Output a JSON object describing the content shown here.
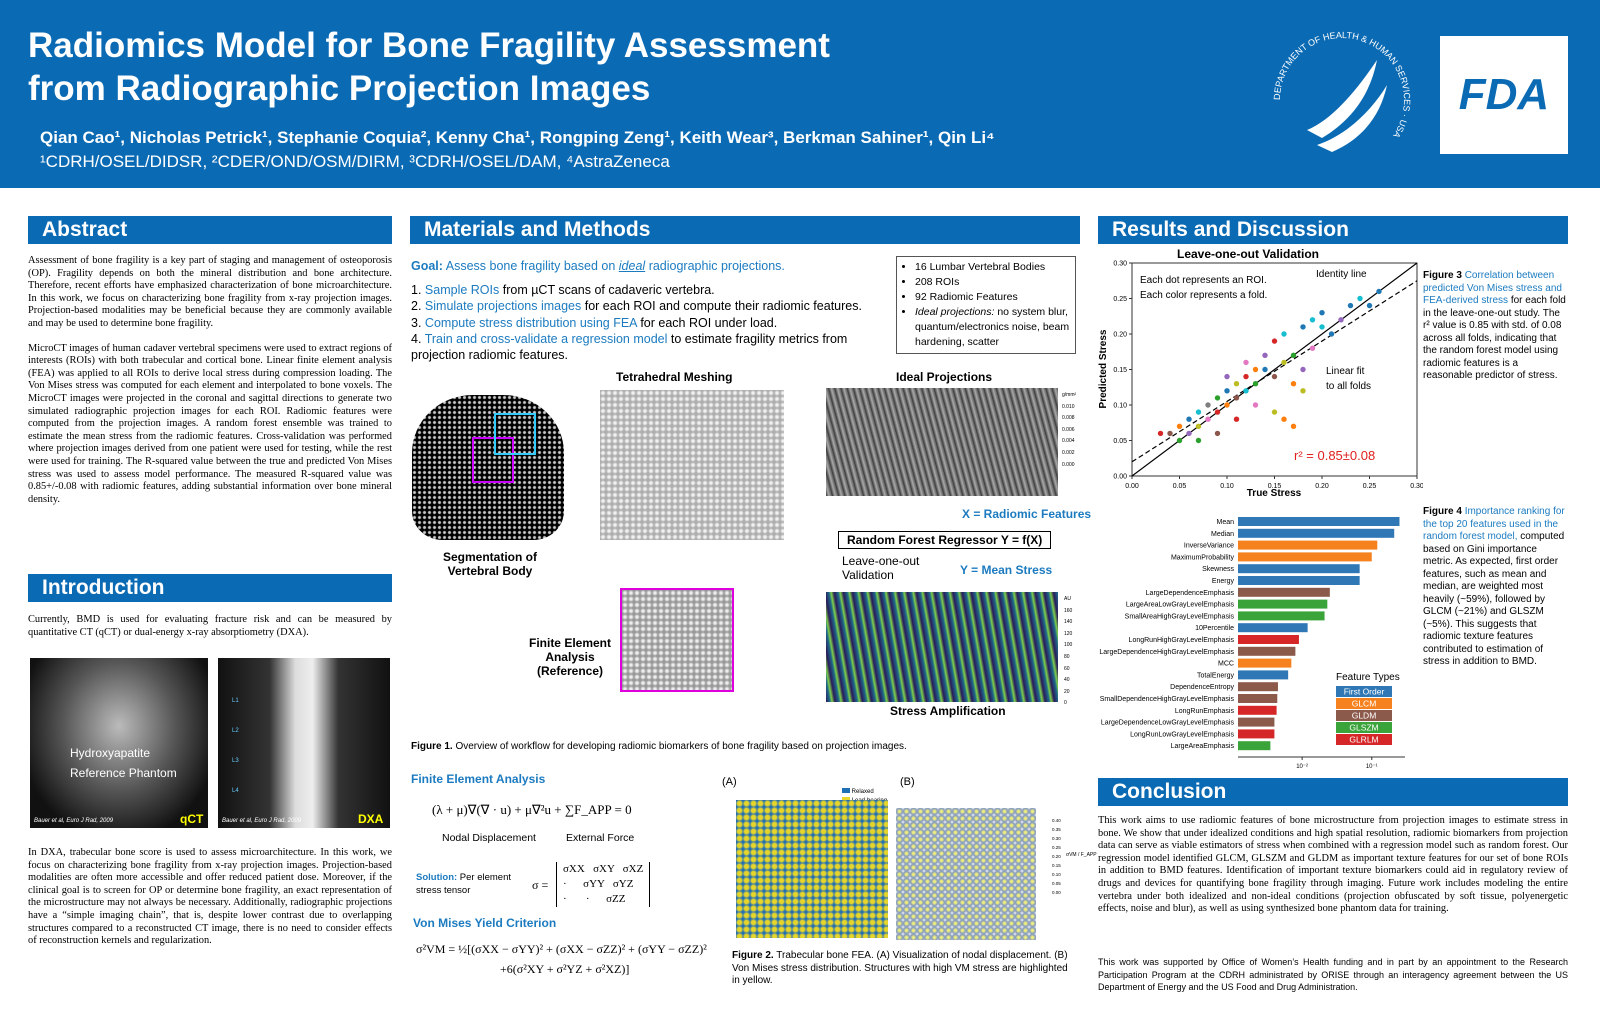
{
  "header": {
    "title_line1": "Radiomics Model for Bone Fragility Assessment",
    "title_line2": "from Radiographic Projection Images",
    "authors": "Qian Cao¹, Nicholas Petrick¹, Stephanie Coquia², Kenny Cha¹, Rongping Zeng¹, Keith Wear³, Berkman Sahiner¹, Qin Li⁴",
    "affiliations": "¹CDRH/OSEL/DIDSR, ²CDER/OND/OSM/DIRM, ³CDRH/OSEL/DAM, ⁴AstraZeneca",
    "seal_text": "DEPARTMENT OF HEALTH & HUMAN SERVICES · USA",
    "logo": "FDA"
  },
  "abstract": {
    "heading": "Abstract",
    "paragraphs": [
      "Assessment of bone fragility is a key part of staging and management of osteoporosis (OP). Fragility depends on both the mineral distribution and bone architecture. Therefore, recent efforts have emphasized characterization of bone microarchitecture. In this work, we focus on characterizing bone fragility from x-ray projection images. Projection-based modalities may be beneficial because they are commonly available and may be used to determine bone fragility.",
      "MicroCT images of human cadaver vertebral specimens were used to extract regions of interests (ROIs) with both trabecular and cortical bone. Linear finite element analysis (FEA) was applied to all ROIs to derive local stress during compression loading. The Von Mises stress was computed for each element and interpolated to bone voxels. The MicroCT images were projected in the coronal and sagittal directions to generate two simulated radiographic projection images for each ROI. Radiomic features were computed from the projection images. A random forest ensemble was trained to estimate the mean stress from the radiomic features. Cross-validation was performed where projection images derived from one patient were used for testing, while the rest were used for training. The R-squared value between the true and predicted Von Mises stress was used to assess model performance. The measured R-squared value was 0.85+/-0.08 with radiomic features, adding substantial information over bone mineral density."
    ]
  },
  "introduction": {
    "heading": "Introduction",
    "paragraph1": "Currently, BMD is used for evaluating fracture risk and can be measured by quantitative CT (qCT) or dual-energy x-ray absorptiometry (DXA).",
    "qct_image": {
      "label1": "Hydroxyapatite",
      "label2": "Reference Phantom",
      "credit": "Bauer et al, Euro J Rad, 2009",
      "tag": "qCT"
    },
    "dxa_image": {
      "credit": "Bauer et al, Euro J Rad, 2009",
      "tag": "DXA",
      "levels": [
        "L1",
        "L2",
        "L3",
        "L4"
      ]
    },
    "paragraph2": "In DXA, trabecular bone score is used to assess microarchitecture. In this work, we focus on characterizing bone fragility from x-ray projection images. Projection-based modalities are often more accessible and offer reduced patient dose. Moreover, if the clinical goal is to screen for OP or determine bone fragility, an exact representation of the microstructure may not always be necessary. Additionally, radiographic projections have a “simple imaging chain”, that is, despite lower contrast due to overlapping structures compared to a reconstructed CT image, there is no need to consider effects of reconstruction kernels and regularization."
  },
  "methods": {
    "heading": "Materials and Methods",
    "goal_label": "Goal:",
    "goal_pre": "Assess bone fragility based on",
    "goal_em": "ideal",
    "goal_post": "radiographic projections.",
    "steps": [
      {
        "num": "1.",
        "link": "Sample ROIs",
        "text": "from µCT scans of cadaveric vertebra."
      },
      {
        "num": "2.",
        "link": "Simulate projections images",
        "text": "for each ROI and compute their radiomic features."
      },
      {
        "num": "3.",
        "link": "Compute stress distribution using FEA",
        "text": "for each ROI under load."
      },
      {
        "num": "4.",
        "link": "Train and cross-validate a regression model",
        "text": "to estimate fragility metrics from projection radiomic features."
      }
    ],
    "facts": [
      "16 Lumbar Vertebral Bodies",
      "208 ROIs",
      "92 Radiomic Features"
    ],
    "facts_ideal_label": "Ideal projections:",
    "facts_ideal_text": "no system blur, quantum/electronics noise, beam hardening, scatter",
    "figure1": {
      "meshing": "Tetrahedral Meshing",
      "projections": "Ideal Projections",
      "segmentation": "Segmentation of Vertebral Body",
      "fea": "Finite Element Analysis (Reference)",
      "x_label": "X = Radiomic Features",
      "regressor": "Random Forest Regressor Y = f(X)",
      "loo": "Leave-one-out Validation",
      "y_label": "Y = Mean Stress",
      "amplification": "Stress Amplification",
      "cbar1_unit": "g/mm²",
      "cbar1_ticks": [
        "0.010",
        "0.008",
        "0.006",
        "0.004",
        "0.002",
        "0.000"
      ],
      "cbar2_unit": "AU",
      "cbar2_ticks": [
        "160",
        "140",
        "120",
        "100",
        "80",
        "60",
        "40",
        "20",
        "0"
      ],
      "caption_label": "Figure 1.",
      "caption": "Overview of workflow for developing radiomic biomarkers of bone fragility based on projection images."
    },
    "fea": {
      "heading": "Finite Element Analysis",
      "equation": "(λ + μ)∇(∇ · u) + μ∇²u + ∑F_APP = 0",
      "nodal": "Nodal Displacement",
      "external": "External Force",
      "solution_label": "Solution:",
      "solution_text": "Per element stress tensor",
      "tensor_lhs": "σ =",
      "tensor_rows": [
        "σXX   σXY   σXZ",
        "·      σYY   σYZ",
        "·       ·      σZZ"
      ],
      "vm_heading": "Von Mises Yield Criterion",
      "vm_line1": "σ²VM = ½[(σXX − σYY)² + (σXX − σZZ)² + (σYY − σZZ)²",
      "vm_line2": "+6(σ²XY + σ²YZ + σ²XZ)]"
    },
    "figure2": {
      "panel_a": "(A)",
      "panel_b": "(B)",
      "legend": [
        "Relaxed",
        "Load-bearing"
      ],
      "cbar_ticks": [
        "0.40",
        "0.35",
        "0.30",
        "0.25",
        "0.20",
        "0.15",
        "0.10",
        "0.05",
        "0.00"
      ],
      "cbar_label": "σVM / F_APP",
      "caption_label": "Figure 2.",
      "caption": "Trabecular bone FEA. (A) Visualization of nodal displacement. (B) Von Mises stress distribution. Structures with high VM stress are highlighted in yellow."
    }
  },
  "results": {
    "heading": "Results and Discussion",
    "scatter": {
      "type": "scatter",
      "title": "Leave-one-out Validation",
      "x_label": "True Stress",
      "y_label": "Predicted Stress",
      "note1": "Each dot represents an ROI.",
      "note2": "Each color represents a fold.",
      "identity_label": "Identity line",
      "fit_label1": "Linear fit",
      "fit_label2": "to all folds",
      "r2": "r² = 0.85±0.08",
      "xlim": [
        0,
        0.3
      ],
      "ylim": [
        0,
        0.3
      ],
      "xticks": [
        {
          "value": 0,
          "label": "0.00"
        },
        {
          "value": 0.05,
          "label": "0.05"
        },
        {
          "value": 0.1,
          "label": "0.10"
        },
        {
          "value": 0.15,
          "label": "0.15"
        },
        {
          "value": 0.2,
          "label": "0.20"
        },
        {
          "value": 0.25,
          "label": "0.25"
        },
        {
          "value": 0.3,
          "label": "0.30"
        }
      ],
      "yticks": [
        {
          "value": 0,
          "label": "0.00"
        },
        {
          "value": 0.05,
          "label": "0.05"
        },
        {
          "value": 0.1,
          "label": "0.10"
        },
        {
          "value": 0.15,
          "label": "0.15"
        },
        {
          "value": 0.2,
          "label": "0.20"
        },
        {
          "value": 0.25,
          "label": "0.25"
        },
        {
          "value": 0.3,
          "label": "0.30"
        }
      ],
      "identity_line": {
        "x": [
          0,
          0.3
        ],
        "y": [
          0,
          0.3
        ]
      },
      "fit_line": {
        "x": [
          0,
          0.3
        ],
        "y": [
          0.02,
          0.275
        ]
      },
      "x": [
        0.03,
        0.04,
        0.05,
        0.05,
        0.06,
        0.06,
        0.07,
        0.07,
        0.08,
        0.08,
        0.09,
        0.09,
        0.1,
        0.1,
        0.1,
        0.11,
        0.11,
        0.12,
        0.12,
        0.12,
        0.13,
        0.13,
        0.14,
        0.14,
        0.15,
        0.15,
        0.16,
        0.16,
        0.17,
        0.17,
        0.18,
        0.18,
        0.19,
        0.19,
        0.2,
        0.2,
        0.21,
        0.22,
        0.23,
        0.24,
        0.25,
        0.26,
        0.15,
        0.16,
        0.17,
        0.18,
        0.13,
        0.11,
        0.09,
        0.07
      ],
      "y": [
        0.06,
        0.06,
        0.05,
        0.07,
        0.06,
        0.08,
        0.07,
        0.09,
        0.08,
        0.1,
        0.09,
        0.11,
        0.1,
        0.12,
        0.14,
        0.11,
        0.13,
        0.12,
        0.14,
        0.16,
        0.13,
        0.15,
        0.15,
        0.17,
        0.14,
        0.19,
        0.16,
        0.2,
        0.17,
        0.13,
        0.15,
        0.21,
        0.22,
        0.18,
        0.23,
        0.21,
        0.2,
        0.22,
        0.24,
        0.25,
        0.24,
        0.26,
        0.09,
        0.08,
        0.07,
        0.12,
        0.1,
        0.08,
        0.06,
        0.05
      ],
      "colors": [
        "#d62728",
        "#8c564b",
        "#2ca02c",
        "#ff7f0e",
        "#9467bd",
        "#1f77b4",
        "#bcbd22",
        "#17becf",
        "#e377c2",
        "#7f7f7f",
        "#d62728",
        "#2ca02c",
        "#ff7f0e",
        "#1f77b4",
        "#9467bd",
        "#8c564b",
        "#bcbd22",
        "#17becf",
        "#d62728",
        "#e377c2",
        "#2ca02c",
        "#ff7f0e",
        "#1f77b4",
        "#9467bd",
        "#8c564b",
        "#d62728",
        "#bcbd22",
        "#17becf",
        "#2ca02c",
        "#ff7f0e",
        "#9467bd",
        "#1f77b4",
        "#17becf",
        "#e377c2",
        "#1f77b4",
        "#17becf",
        "#1f77b4",
        "#9467bd",
        "#1f77b4",
        "#17becf",
        "#1f77b4",
        "#1f77b4",
        "#bcbd22",
        "#ff7f0e",
        "#ff7f0e",
        "#bcbd22",
        "#e377c2",
        "#d62728",
        "#8c564b",
        "#2ca02c"
      ]
    },
    "figure3": {
      "label": "Figure 3",
      "highlight": "Correlation between predicted Von Mises stress and FEA-derived stress",
      "text": "for each fold in the leave-one-out study. The r² value is 0.85 with std. of 0.08 across all folds, indicating that the random forest model using radiomic features is a reasonable predictor of stress."
    },
    "importance": {
      "type": "bar",
      "orientation": "horizontal",
      "log_scale": true,
      "xlim": [
        0.0012,
        0.3
      ],
      "xticks": [
        {
          "value": 0.01,
          "label": "10⁻²"
        },
        {
          "value": 0.1,
          "label": "10⁻¹"
        }
      ],
      "categories": [
        "Mean",
        "Median",
        "InverseVariance",
        "MaximumProbability",
        "Skewness",
        "Energy",
        "LargeDependenceEmphasis",
        "LargeAreaLowGrayLevelEmphasis",
        "SmallAreaHighGrayLevelEmphasis",
        "10Percentile",
        "LongRunHighGrayLevelEmphasis",
        "LargeDependenceHighGrayLevelEmphasis",
        "MCC",
        "TotalEnergy",
        "DependenceEntropy",
        "SmallDependenceHighGrayLevelEmphasis",
        "LongRunEmphasis",
        "LargeDependenceLowGrayLevelEmphasis",
        "LongRunLowGrayLevelEmphasis",
        "LargeAreaEmphasis"
      ],
      "values": [
        0.25,
        0.21,
        0.12,
        0.1,
        0.067,
        0.067,
        0.025,
        0.023,
        0.021,
        0.012,
        0.009,
        0.008,
        0.007,
        0.0063,
        0.0045,
        0.0044,
        0.0043,
        0.004,
        0.004,
        0.0035
      ],
      "colors": [
        "#2f78b5",
        "#2f78b5",
        "#f5821f",
        "#f5821f",
        "#2f78b5",
        "#2f78b5",
        "#8c5a4b",
        "#3aa33a",
        "#3aa33a",
        "#2f78b5",
        "#d62728",
        "#8c5a4b",
        "#f5821f",
        "#2f78b5",
        "#8c5a4b",
        "#8c5a4b",
        "#d62728",
        "#8c5a4b",
        "#d62728",
        "#3aa33a"
      ],
      "legend_title": "Feature Types",
      "legend": [
        {
          "name": "First Order",
          "color": "#2f78b5"
        },
        {
          "name": "GLCM",
          "color": "#f5821f"
        },
        {
          "name": "GLDM",
          "color": "#8c5a4b"
        },
        {
          "name": "GLSZM",
          "color": "#3aa33a"
        },
        {
          "name": "GLRLM",
          "color": "#d62728"
        }
      ]
    },
    "figure4": {
      "label": "Figure 4",
      "highlight": "Importance ranking for the top 20 features used in the random forest model,",
      "text": "computed based on Gini importance metric. As expected, first order features, such as mean and median, are weighted most heavily (~59%), followed by GLCM (~21%) and GLSZM (~5%). This suggests that radiomic texture features contributed to estimation of stress in addition to BMD."
    }
  },
  "conclusion": {
    "heading": "Conclusion",
    "paragraph": "This work aims to use radiomic features of bone microstructure from projection images to estimate stress in bone. We show that under idealized conditions and high spatial resolution, radiomic biomarkers from projection data can serve as viable estimators of stress when combined with a regression model such as random forest. Our regression model identified GLCM, GLSZM and GLDM as important texture features for our set of bone ROIs in addition to BMD features. Identification of important texture biomarkers could aid in regulatory review of drugs and devices for quantifying bone fragility through imaging. Future work includes modeling the entire vertebra under both idealized and non-ideal conditions (projection obfuscated by soft tissue, polyenergetic effects, noise and blur), as well as using synthesized bone phantom data for training.",
    "acknowledgment": "This work was supported by Office of Women’s Health funding and in part by an appointment to the Research Participation Program at the CDRH administrated by ORISE through an interagency agreement between the US Department of Energy and the US Food and Drug Administration."
  }
}
